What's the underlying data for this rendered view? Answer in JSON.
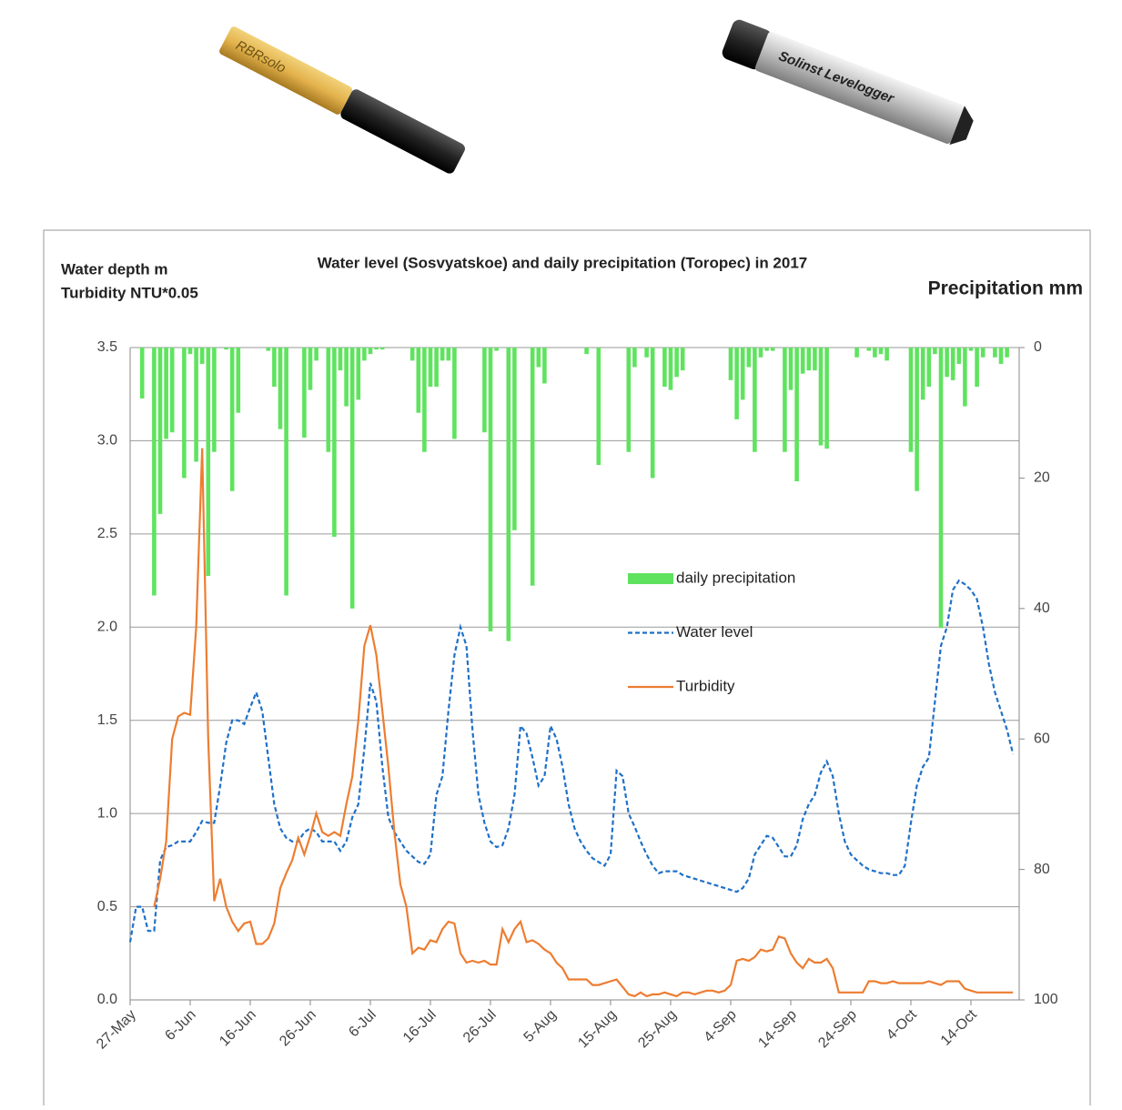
{
  "devices": {
    "left": "RBRsolo",
    "right": "Solinst Levelogger"
  },
  "chart_data": {
    "type": "combo",
    "title": "Water level (Sosvyatskoe) and daily precipitation (Toropec) in 2017",
    "y_label": [
      "Water depth m",
      "Turbidity NTU*0.05"
    ],
    "y2_label": "Precipitation mm",
    "categories": [
      "27-May",
      null,
      null,
      null,
      null,
      null,
      null,
      null,
      null,
      null,
      "6-Jun",
      null,
      null,
      null,
      null,
      null,
      null,
      null,
      null,
      null,
      "16-Jun",
      null,
      null,
      null,
      null,
      null,
      null,
      null,
      null,
      null,
      "26-Jun",
      null,
      null,
      null,
      null,
      null,
      null,
      null,
      null,
      null,
      "6-Jul",
      null,
      null,
      null,
      null,
      null,
      null,
      null,
      null,
      null,
      "16-Jul",
      null,
      null,
      null,
      null,
      null,
      null,
      null,
      null,
      null,
      "26-Jul",
      null,
      null,
      null,
      null,
      null,
      null,
      null,
      null,
      null,
      "5-Aug",
      null,
      null,
      null,
      null,
      null,
      null,
      null,
      null,
      null,
      "15-Aug",
      null,
      null,
      null,
      null,
      null,
      null,
      null,
      null,
      null,
      "25-Aug",
      null,
      null,
      null,
      null,
      null,
      null,
      null,
      null,
      null,
      "4-Sep",
      null,
      null,
      null,
      null,
      null,
      null,
      null,
      null,
      null,
      "14-Sep",
      null,
      null,
      null,
      null,
      null,
      null,
      null,
      null,
      null,
      "24-Sep",
      null,
      null,
      null,
      null,
      null,
      null,
      null,
      null,
      null,
      "4-Oct",
      null,
      null,
      null,
      null,
      null,
      null,
      null,
      null,
      null,
      "14-Oct",
      null,
      null,
      null,
      null,
      null,
      null,
      null
    ],
    "ylim": [
      0,
      3.5
    ],
    "yticks": [
      {
        "value": 0,
        "label": "0.0"
      },
      0.5,
      {
        "value": 1,
        "label": "1.0"
      },
      1.5,
      {
        "value": 2,
        "label": "2.0"
      },
      2.5,
      {
        "value": 3,
        "label": "3.0"
      },
      3.5
    ],
    "y2lim": [
      0,
      100
    ],
    "y2_inverted": true,
    "y2ticks": [
      0,
      20,
      40,
      60,
      80,
      100
    ],
    "grid": true,
    "legend": "center",
    "series": [
      {
        "name": "daily precipitation",
        "type": "bar",
        "axis": "y2",
        "color": "#5fe35f",
        "values": [
          0,
          0,
          7.8,
          0,
          38,
          25.5,
          14,
          13,
          0,
          20,
          1,
          17.5,
          2.5,
          35,
          16,
          0,
          0.3,
          22,
          10,
          0,
          0,
          0,
          0,
          0.5,
          6,
          12.5,
          38,
          0,
          0,
          13.8,
          6.5,
          2,
          0,
          16,
          29,
          3.5,
          9,
          40,
          8,
          2,
          1,
          0.3,
          0.3,
          0,
          0,
          0,
          0,
          2,
          10,
          16,
          6,
          6,
          2,
          2,
          14,
          0,
          0,
          0,
          0,
          13,
          43.5,
          0.5,
          0,
          45,
          28,
          0,
          0,
          36.5,
          3,
          5.5,
          0,
          0,
          0,
          0,
          0,
          0,
          1,
          0,
          18,
          0,
          0,
          0,
          0,
          16,
          3,
          0,
          1.5,
          20,
          0,
          6,
          6.5,
          4.5,
          3.5,
          0,
          0,
          0,
          0,
          0,
          0,
          0,
          5,
          11,
          8,
          3,
          16,
          1.5,
          0.5,
          0.5,
          0,
          16,
          6.5,
          20.5,
          4,
          3.5,
          3.5,
          15,
          15.5,
          0,
          0,
          0,
          0,
          1.5,
          0,
          0.5,
          1.5,
          1,
          2,
          0,
          0,
          0,
          16,
          22,
          8,
          6,
          1,
          43,
          4.5,
          5,
          2.5,
          9,
          0.5,
          6,
          1.5,
          0,
          1.5,
          2.5,
          1.5,
          0
        ]
      },
      {
        "name": "Water level",
        "type": "line",
        "dashed": true,
        "color": "#1f70c8",
        "values": [
          0.31,
          0.5,
          0.5,
          0.37,
          0.37,
          0.75,
          0.82,
          0.83,
          0.85,
          0.85,
          0.85,
          0.9,
          0.96,
          0.95,
          0.95,
          1.15,
          1.38,
          1.5,
          1.5,
          1.48,
          1.57,
          1.65,
          1.55,
          1.3,
          1.05,
          0.92,
          0.87,
          0.85,
          0.85,
          0.9,
          0.92,
          0.9,
          0.85,
          0.85,
          0.85,
          0.8,
          0.85,
          0.98,
          1.05,
          1.35,
          1.7,
          1.6,
          1.25,
          0.98,
          0.9,
          0.85,
          0.8,
          0.77,
          0.74,
          0.73,
          0.78,
          1.1,
          1.2,
          1.55,
          1.85,
          2.0,
          1.9,
          1.45,
          1.1,
          0.95,
          0.85,
          0.82,
          0.83,
          0.92,
          1.1,
          1.47,
          1.43,
          1.3,
          1.15,
          1.2,
          1.47,
          1.4,
          1.25,
          1.05,
          0.92,
          0.85,
          0.8,
          0.76,
          0.74,
          0.72,
          0.78,
          1.23,
          1.2,
          1.0,
          0.93,
          0.85,
          0.78,
          0.72,
          0.68,
          0.69,
          0.69,
          0.69,
          0.67,
          0.66,
          0.65,
          0.64,
          0.63,
          0.62,
          0.61,
          0.6,
          0.59,
          0.58,
          0.6,
          0.65,
          0.78,
          0.83,
          0.88,
          0.87,
          0.82,
          0.77,
          0.77,
          0.83,
          0.97,
          1.05,
          1.1,
          1.22,
          1.28,
          1.2,
          1.0,
          0.85,
          0.78,
          0.75,
          0.72,
          0.7,
          0.69,
          0.68,
          0.68,
          0.67,
          0.67,
          0.72,
          0.95,
          1.15,
          1.25,
          1.3,
          1.6,
          1.9,
          2.0,
          2.2,
          2.25,
          2.23,
          2.2,
          2.15,
          2.0,
          1.8,
          1.65,
          1.55,
          1.45,
          1.32
        ]
      },
      {
        "name": "Turbidity",
        "type": "line",
        "color": "#ed7d31",
        "values": [
          null,
          null,
          null,
          null,
          0.5,
          0.65,
          0.85,
          1.4,
          1.52,
          1.54,
          1.53,
          2.0,
          2.96,
          1.4,
          0.53,
          0.65,
          0.5,
          0.42,
          0.37,
          0.41,
          0.42,
          0.3,
          0.3,
          0.33,
          0.41,
          0.6,
          0.68,
          0.75,
          0.87,
          0.78,
          0.88,
          1.0,
          0.9,
          0.88,
          0.9,
          0.88,
          1.05,
          1.2,
          1.5,
          1.9,
          2.01,
          1.85,
          1.55,
          1.25,
          0.9,
          0.62,
          0.5,
          0.25,
          0.28,
          0.27,
          0.32,
          0.31,
          0.38,
          0.42,
          0.41,
          0.25,
          0.2,
          0.21,
          0.2,
          0.21,
          0.19,
          0.19,
          0.38,
          0.31,
          0.38,
          0.42,
          0.31,
          0.32,
          0.3,
          0.27,
          0.25,
          0.2,
          0.17,
          0.11,
          0.11,
          0.11,
          0.11,
          0.08,
          0.08,
          0.09,
          0.1,
          0.11,
          0.07,
          0.03,
          0.02,
          0.04,
          0.02,
          0.03,
          0.03,
          0.04,
          0.03,
          0.02,
          0.04,
          0.04,
          0.03,
          0.04,
          0.05,
          0.05,
          0.04,
          0.05,
          0.08,
          0.21,
          0.22,
          0.21,
          0.23,
          0.27,
          0.26,
          0.27,
          0.34,
          0.33,
          0.25,
          0.2,
          0.17,
          0.22,
          0.2,
          0.2,
          0.22,
          0.17,
          0.04,
          0.04,
          0.04,
          0.04,
          0.04,
          0.1,
          0.1,
          0.09,
          0.09,
          0.1,
          0.09,
          0.09,
          0.09,
          0.09,
          0.09,
          0.1,
          0.09,
          0.08,
          0.1,
          0.1,
          0.1,
          0.06,
          0.05,
          0.04,
          0.04,
          0.04,
          0.04,
          0.04,
          0.04,
          0.04
        ]
      }
    ]
  }
}
